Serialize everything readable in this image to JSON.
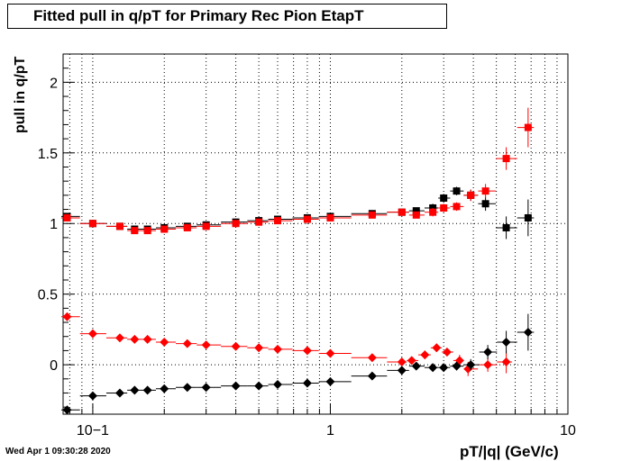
{
  "chart_data": {
    "type": "scatter",
    "title": "Fitted pull in q/pT for Primary Rec Pion EtapT",
    "xlabel": "pT/|q| (GeV/c)",
    "ylabel": "pull in q/pT",
    "x_scale": "log",
    "xlim": [
      0.075,
      10
    ],
    "ylim": [
      -0.35,
      2.2
    ],
    "grid": true,
    "x_tick_labels": [
      "10−1",
      "1",
      "10"
    ],
    "y_tick_labels": [
      "0",
      "0.5",
      "1",
      "1.5",
      "2"
    ],
    "series": [
      {
        "marker": "square",
        "color": "#000000",
        "points": [
          [
            0.078,
            1.05,
            0.005
          ],
          [
            0.1,
            1.0,
            0.01
          ],
          [
            0.13,
            0.98,
            0.02
          ],
          [
            0.15,
            0.96,
            0.01
          ],
          [
            0.17,
            0.96,
            0.01
          ],
          [
            0.2,
            0.97,
            0.01
          ],
          [
            0.25,
            0.98,
            0.01
          ],
          [
            0.3,
            0.99,
            0.01
          ],
          [
            0.4,
            1.01,
            0.02
          ],
          [
            0.5,
            1.02,
            0.02
          ],
          [
            0.6,
            1.03,
            0.02
          ],
          [
            0.8,
            1.04,
            0.02
          ],
          [
            1.0,
            1.05,
            0.02
          ],
          [
            1.5,
            1.07,
            0.02
          ],
          [
            2.0,
            1.08,
            0.02
          ],
          [
            2.3,
            1.09,
            0.02
          ],
          [
            2.7,
            1.11,
            0.03
          ],
          [
            3.0,
            1.18,
            0.03
          ],
          [
            3.4,
            1.23,
            0.03
          ],
          [
            3.9,
            1.2,
            0.04
          ],
          [
            4.5,
            1.14,
            0.05
          ],
          [
            5.5,
            0.97,
            0.08
          ],
          [
            6.8,
            1.04,
            0.13
          ]
        ]
      },
      {
        "marker": "square",
        "color": "#ff0000",
        "points": [
          [
            0.078,
            1.04,
            0.005
          ],
          [
            0.1,
            1.0,
            0.01
          ],
          [
            0.13,
            0.98,
            0.02
          ],
          [
            0.15,
            0.95,
            0.01
          ],
          [
            0.17,
            0.95,
            0.01
          ],
          [
            0.2,
            0.96,
            0.01
          ],
          [
            0.25,
            0.97,
            0.01
          ],
          [
            0.3,
            0.98,
            0.01
          ],
          [
            0.4,
            1.0,
            0.02
          ],
          [
            0.5,
            1.01,
            0.02
          ],
          [
            0.6,
            1.02,
            0.02
          ],
          [
            0.8,
            1.03,
            0.02
          ],
          [
            1.0,
            1.04,
            0.02
          ],
          [
            1.5,
            1.06,
            0.02
          ],
          [
            2.0,
            1.08,
            0.02
          ],
          [
            2.3,
            1.06,
            0.02
          ],
          [
            2.7,
            1.08,
            0.03
          ],
          [
            3.0,
            1.11,
            0.03
          ],
          [
            3.4,
            1.12,
            0.03
          ],
          [
            3.9,
            1.2,
            0.04
          ],
          [
            4.5,
            1.23,
            0.05
          ],
          [
            5.5,
            1.46,
            0.08
          ],
          [
            6.8,
            1.68,
            0.14
          ]
        ]
      },
      {
        "marker": "diamond",
        "color": "#ff0000",
        "points": [
          [
            0.078,
            0.34,
            0.005
          ],
          [
            0.1,
            0.22,
            0.01
          ],
          [
            0.13,
            0.19,
            0.02
          ],
          [
            0.15,
            0.18,
            0.01
          ],
          [
            0.17,
            0.18,
            0.01
          ],
          [
            0.2,
            0.16,
            0.01
          ],
          [
            0.25,
            0.15,
            0.01
          ],
          [
            0.3,
            0.14,
            0.01
          ],
          [
            0.4,
            0.13,
            0.02
          ],
          [
            0.5,
            0.12,
            0.02
          ],
          [
            0.6,
            0.11,
            0.02
          ],
          [
            0.8,
            0.1,
            0.02
          ],
          [
            1.0,
            0.08,
            0.02
          ],
          [
            1.5,
            0.05,
            0.02
          ],
          [
            2.0,
            0.02,
            0.02
          ],
          [
            2.2,
            0.03,
            0.02
          ],
          [
            2.5,
            0.07,
            0.03
          ],
          [
            2.8,
            0.12,
            0.03
          ],
          [
            3.1,
            0.09,
            0.03
          ],
          [
            3.5,
            0.03,
            0.04
          ],
          [
            3.8,
            -0.03,
            0.05
          ],
          [
            4.6,
            0.0,
            0.05
          ],
          [
            5.5,
            0.02,
            0.08
          ]
        ]
      },
      {
        "marker": "diamond",
        "color": "#000000",
        "points": [
          [
            0.078,
            -0.32,
            0.005
          ],
          [
            0.1,
            -0.22,
            0.01
          ],
          [
            0.13,
            -0.2,
            0.02
          ],
          [
            0.15,
            -0.18,
            0.01
          ],
          [
            0.17,
            -0.18,
            0.01
          ],
          [
            0.2,
            -0.17,
            0.01
          ],
          [
            0.25,
            -0.16,
            0.01
          ],
          [
            0.3,
            -0.16,
            0.01
          ],
          [
            0.4,
            -0.15,
            0.02
          ],
          [
            0.5,
            -0.15,
            0.02
          ],
          [
            0.6,
            -0.14,
            0.02
          ],
          [
            0.8,
            -0.13,
            0.02
          ],
          [
            1.0,
            -0.12,
            0.02
          ],
          [
            1.5,
            -0.08,
            0.02
          ],
          [
            2.0,
            -0.04,
            0.02
          ],
          [
            2.3,
            -0.01,
            0.02
          ],
          [
            2.7,
            -0.02,
            0.03
          ],
          [
            3.0,
            -0.02,
            0.03
          ],
          [
            3.4,
            -0.01,
            0.03
          ],
          [
            3.9,
            0.0,
            0.04
          ],
          [
            4.6,
            0.09,
            0.05
          ],
          [
            5.5,
            0.16,
            0.08
          ],
          [
            6.8,
            0.23,
            0.13
          ]
        ]
      }
    ]
  },
  "footer": {
    "timestamp": "Wed Apr  1 09:30:28 2020"
  }
}
